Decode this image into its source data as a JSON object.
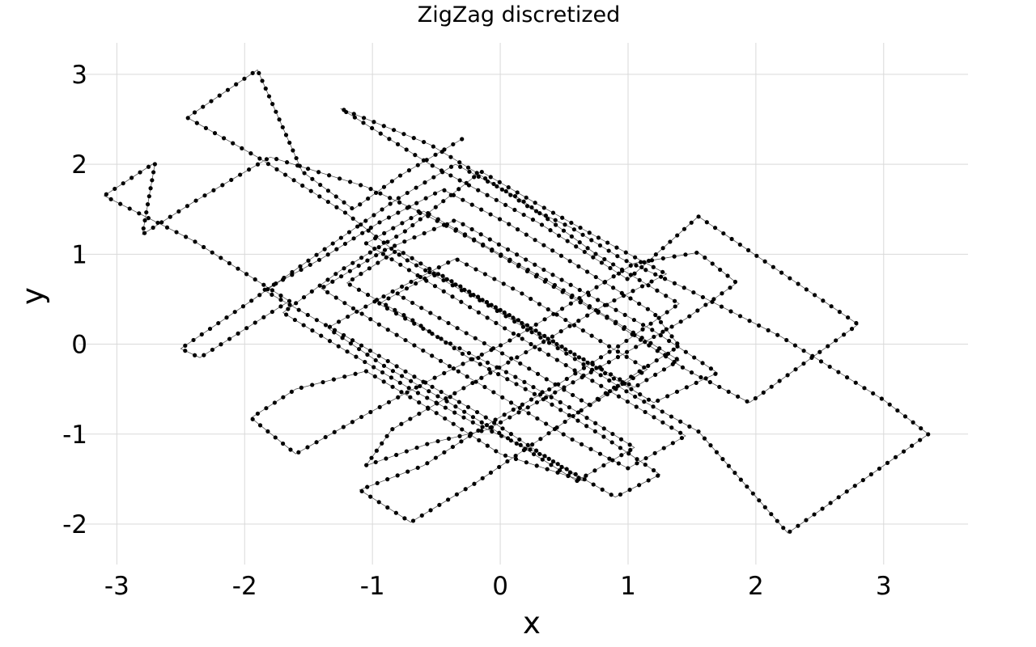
{
  "chart_data": {
    "type": "line",
    "title": "ZigZag discretized",
    "xlabel": "x",
    "ylabel": "y",
    "xlim": [
      -3.3,
      3.66
    ],
    "ylim": [
      -2.45,
      3.35
    ],
    "xticks": [
      -3,
      -2,
      -1,
      0,
      1,
      2,
      3
    ],
    "yticks": [
      -2,
      -1,
      0,
      1,
      2,
      3
    ],
    "grid": true,
    "legend": "none",
    "series": [
      {
        "marker": "dot",
        "points": [
          [
            -0.3,
            2.28
          ],
          [
            -0.8,
            1.86
          ],
          [
            -1.15,
            1.5
          ],
          [
            -1.55,
            1.92
          ],
          [
            -1.9,
            3.05
          ],
          [
            -2.45,
            2.52
          ],
          [
            -1.9,
            2.08
          ],
          [
            -1.2,
            1.45
          ],
          [
            -0.75,
            0.95
          ],
          [
            -0.15,
            0.48
          ],
          [
            0.4,
            0.0
          ],
          [
            1.05,
            -0.58
          ],
          [
            1.55,
            -0.97
          ],
          [
            2.25,
            -2.1
          ],
          [
            3.35,
            -1.0
          ],
          [
            3.0,
            -0.62
          ],
          [
            2.2,
            0.08
          ],
          [
            1.45,
            0.62
          ],
          [
            0.95,
            0.95
          ],
          [
            0.55,
            1.3
          ],
          [
            0.25,
            1.5
          ],
          [
            -0.2,
            1.92
          ],
          [
            -0.55,
            2.22
          ],
          [
            -1.25,
            2.62
          ],
          [
            -0.55,
            2.0
          ],
          [
            0.3,
            1.35
          ],
          [
            1.0,
            0.72
          ],
          [
            1.55,
            1.42
          ],
          [
            2.8,
            0.22
          ],
          [
            1.95,
            -0.65
          ],
          [
            1.45,
            -0.28
          ],
          [
            0.85,
            0.28
          ],
          [
            0.2,
            0.82
          ],
          [
            -0.2,
            1.15
          ],
          [
            -0.6,
            1.45
          ],
          [
            -1.05,
            1.75
          ],
          [
            -1.8,
            2.08
          ],
          [
            -2.4,
            1.58
          ],
          [
            -2.8,
            1.22
          ],
          [
            -2.7,
            2.02
          ],
          [
            -3.1,
            1.65
          ],
          [
            -2.4,
            1.15
          ],
          [
            -1.65,
            0.48
          ],
          [
            -2.35,
            -0.15
          ],
          [
            -2.5,
            -0.05
          ],
          [
            -1.95,
            0.48
          ],
          [
            -1.35,
            1.08
          ],
          [
            -0.8,
            1.62
          ],
          [
            -0.35,
            2.0
          ],
          [
            0.15,
            1.62
          ],
          [
            0.75,
            1.0
          ],
          [
            1.4,
            0.45
          ],
          [
            0.95,
            0.0
          ],
          [
            0.45,
            -0.45
          ],
          [
            -0.05,
            -0.85
          ],
          [
            -0.6,
            -1.35
          ],
          [
            -1.1,
            -1.62
          ],
          [
            -0.7,
            -1.98
          ],
          [
            -0.2,
            -1.55
          ],
          [
            0.35,
            -1.02
          ],
          [
            0.85,
            -0.52
          ],
          [
            1.4,
            -0.02
          ],
          [
            1.2,
            0.35
          ],
          [
            0.55,
            0.92
          ],
          [
            0.05,
            1.35
          ],
          [
            -0.45,
            1.72
          ],
          [
            -0.95,
            1.35
          ],
          [
            -1.4,
            0.95
          ],
          [
            -1.85,
            0.6
          ],
          [
            -1.2,
            0.08
          ],
          [
            -0.65,
            -0.38
          ],
          [
            -0.15,
            -0.78
          ],
          [
            0.3,
            -1.2
          ],
          [
            0.65,
            -1.52
          ],
          [
            0.0,
            -1.22
          ],
          [
            -0.55,
            -0.72
          ],
          [
            -1.05,
            -0.3
          ],
          [
            -1.6,
            -0.5
          ],
          [
            -1.95,
            -0.82
          ],
          [
            -1.6,
            -1.22
          ],
          [
            -1.1,
            -0.82
          ],
          [
            -0.55,
            -0.4
          ],
          [
            0.05,
            0.02
          ],
          [
            0.55,
            0.45
          ],
          [
            1.05,
            0.9
          ],
          [
            1.55,
            1.02
          ],
          [
            1.85,
            0.68
          ],
          [
            1.45,
            0.28
          ],
          [
            0.95,
            -0.12
          ],
          [
            0.45,
            -0.52
          ],
          [
            -0.1,
            -0.95
          ],
          [
            -0.55,
            -1.1
          ],
          [
            -1.05,
            -1.35
          ],
          [
            -0.85,
            -0.95
          ],
          [
            -0.3,
            -0.5
          ],
          [
            0.25,
            -0.05
          ],
          [
            0.8,
            0.42
          ],
          [
            1.3,
            0.78
          ],
          [
            0.85,
            1.12
          ],
          [
            0.3,
            1.55
          ],
          [
            -0.15,
            1.92
          ],
          [
            -0.75,
            1.25
          ],
          [
            -1.25,
            0.82
          ],
          [
            -1.7,
            0.35
          ],
          [
            -1.2,
            -0.08
          ],
          [
            -0.7,
            -0.5
          ],
          [
            -0.2,
            -0.88
          ],
          [
            0.35,
            -1.25
          ],
          [
            0.9,
            -1.7
          ],
          [
            1.25,
            -1.45
          ],
          [
            0.8,
            -1.02
          ],
          [
            0.3,
            -0.58
          ],
          [
            -0.25,
            -0.15
          ],
          [
            -0.7,
            0.28
          ],
          [
            -1.2,
            0.68
          ],
          [
            -0.8,
            1.05
          ],
          [
            -0.3,
            0.62
          ],
          [
            0.2,
            0.22
          ],
          [
            0.7,
            -0.22
          ],
          [
            1.2,
            -0.65
          ],
          [
            1.7,
            -0.32
          ],
          [
            1.2,
            0.15
          ],
          [
            0.65,
            0.58
          ],
          [
            0.15,
            0.98
          ],
          [
            -0.35,
            1.38
          ],
          [
            -0.9,
            1.05
          ],
          [
            -1.4,
            0.62
          ],
          [
            -0.95,
            0.22
          ],
          [
            -0.45,
            -0.2
          ],
          [
            0.05,
            -0.62
          ],
          [
            0.55,
            -1.05
          ],
          [
            1.0,
            -1.38
          ],
          [
            1.45,
            -1.02
          ],
          [
            0.95,
            -0.6
          ],
          [
            0.45,
            -0.18
          ],
          [
            -0.05,
            0.25
          ],
          [
            -0.55,
            0.68
          ],
          [
            -1.05,
            1.12
          ],
          [
            -0.6,
            1.48
          ],
          [
            -0.1,
            1.08
          ],
          [
            0.4,
            0.68
          ],
          [
            0.9,
            0.25
          ],
          [
            1.4,
            -0.18
          ],
          [
            1.05,
            -0.48
          ],
          [
            0.5,
            -0.05
          ],
          [
            0.0,
            0.38
          ],
          [
            -0.5,
            0.8
          ],
          [
            -0.95,
            0.45
          ],
          [
            -0.45,
            0.05
          ],
          [
            0.1,
            -0.35
          ],
          [
            0.6,
            -0.75
          ],
          [
            1.05,
            -1.15
          ],
          [
            0.6,
            -1.52
          ],
          [
            0.1,
            -1.08
          ],
          [
            -0.4,
            -0.65
          ],
          [
            -0.9,
            -0.25
          ],
          [
            -1.35,
            0.18
          ],
          [
            -0.85,
            0.58
          ],
          [
            -0.35,
            0.95
          ],
          [
            0.15,
            0.58
          ],
          [
            0.65,
            0.15
          ],
          [
            1.15,
            -0.28
          ],
          [
            0.7,
            -0.68
          ],
          [
            0.2,
            -0.25
          ],
          [
            -0.3,
            0.15
          ],
          [
            -0.8,
            0.55
          ]
        ]
      }
    ]
  }
}
